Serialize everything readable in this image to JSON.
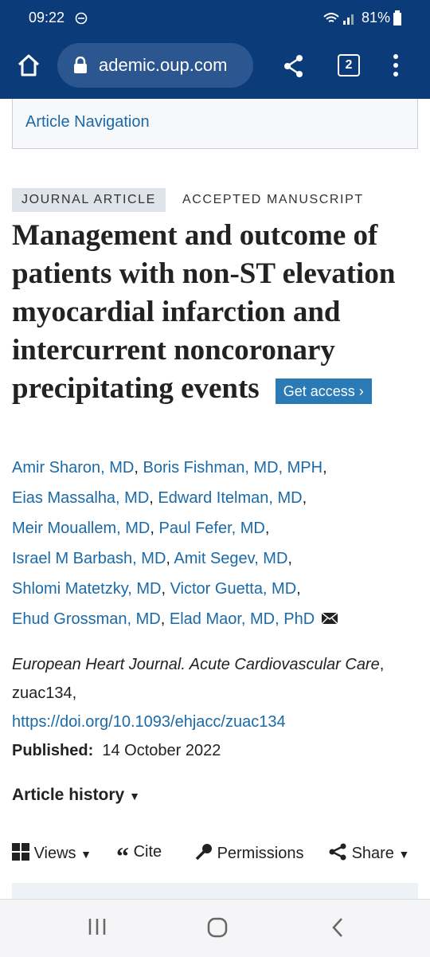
{
  "status_bar": {
    "time": "09:22",
    "battery": "81%"
  },
  "browser": {
    "url": "ademic.oup.com",
    "tab_count": "2"
  },
  "article_navigation": "Article Navigation",
  "labels": [
    "JOURNAL ARTICLE",
    "ACCEPTED MANUSCRIPT"
  ],
  "title": "Management and outcome of patients with non-ST elevation myocardial infarction and intercurrent noncoronary precipitating events",
  "get_access": "Get access",
  "authors": [
    {
      "name": "Amir Sharon, MD",
      "sep": ","
    },
    {
      "name": "Boris Fishman, MD, MPH",
      "sep": ","
    },
    {
      "name": "Eias Massalha, MD",
      "sep": ","
    },
    {
      "name": "Edward Itelman, MD",
      "sep": ","
    },
    {
      "name": "Meir Mouallem, MD",
      "sep": ","
    },
    {
      "name": "Paul Fefer, MD",
      "sep": ","
    },
    {
      "name": "Israel M Barbash, MD",
      "sep": ","
    },
    {
      "name": "Amit Segev, MD",
      "sep": ","
    },
    {
      "name": "Shlomi Matetzky, MD",
      "sep": ","
    },
    {
      "name": "Victor Guetta, MD",
      "sep": ","
    },
    {
      "name": "Ehud Grossman, MD",
      "sep": ","
    },
    {
      "name": "Elad Maor, MD, PhD"
    }
  ],
  "journal": "European Heart Journal. Acute Cardiovascular Care",
  "citation_suffix": ", zuac134,",
  "doi": "https://doi.org/10.1093/ehjacc/zuac134",
  "published": {
    "label": "Published:",
    "date": "14 October 2022"
  },
  "article_history": "Article history",
  "toolbar": [
    "Views",
    "Cite",
    "Permissions",
    "Share"
  ]
}
